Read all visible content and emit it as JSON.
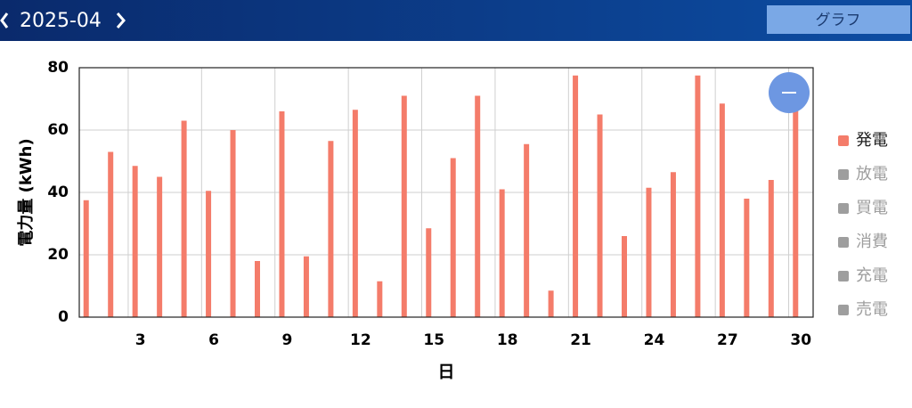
{
  "header": {
    "month": "2025-04",
    "view_button": "グラフ"
  },
  "chart_data": {
    "type": "bar",
    "x_label": "日",
    "y_label": "電力量 (kWh)",
    "categories": [
      null,
      null,
      3,
      null,
      null,
      6,
      null,
      null,
      9,
      null,
      null,
      12,
      null,
      null,
      15,
      null,
      null,
      18,
      null,
      null,
      21,
      null,
      null,
      24,
      null,
      null,
      27,
      null,
      null,
      30
    ],
    "series": [
      {
        "name": "発電",
        "color": "#f47c6a",
        "values": [
          37.5,
          53,
          48.5,
          45,
          63,
          40.5,
          60,
          18,
          66,
          19.5,
          56.5,
          66.5,
          11.5,
          71,
          28.5,
          51,
          71,
          41,
          55.5,
          8.5,
          77.5,
          65,
          26,
          41.5,
          46.5,
          77.5,
          68.5,
          38,
          44,
          70
        ]
      }
    ],
    "inactive_series": [
      {
        "name": "放電",
        "color": "#9e9e9e"
      },
      {
        "name": "買電",
        "color": "#9e9e9e"
      },
      {
        "name": "消費",
        "color": "#9e9e9e"
      },
      {
        "name": "充電",
        "color": "#9e9e9e"
      },
      {
        "name": "売電",
        "color": "#9e9e9e"
      }
    ],
    "ylim": [
      0,
      80
    ],
    "yticks": [
      0,
      20,
      40,
      60,
      80
    ],
    "grid": true,
    "legend": "right"
  }
}
